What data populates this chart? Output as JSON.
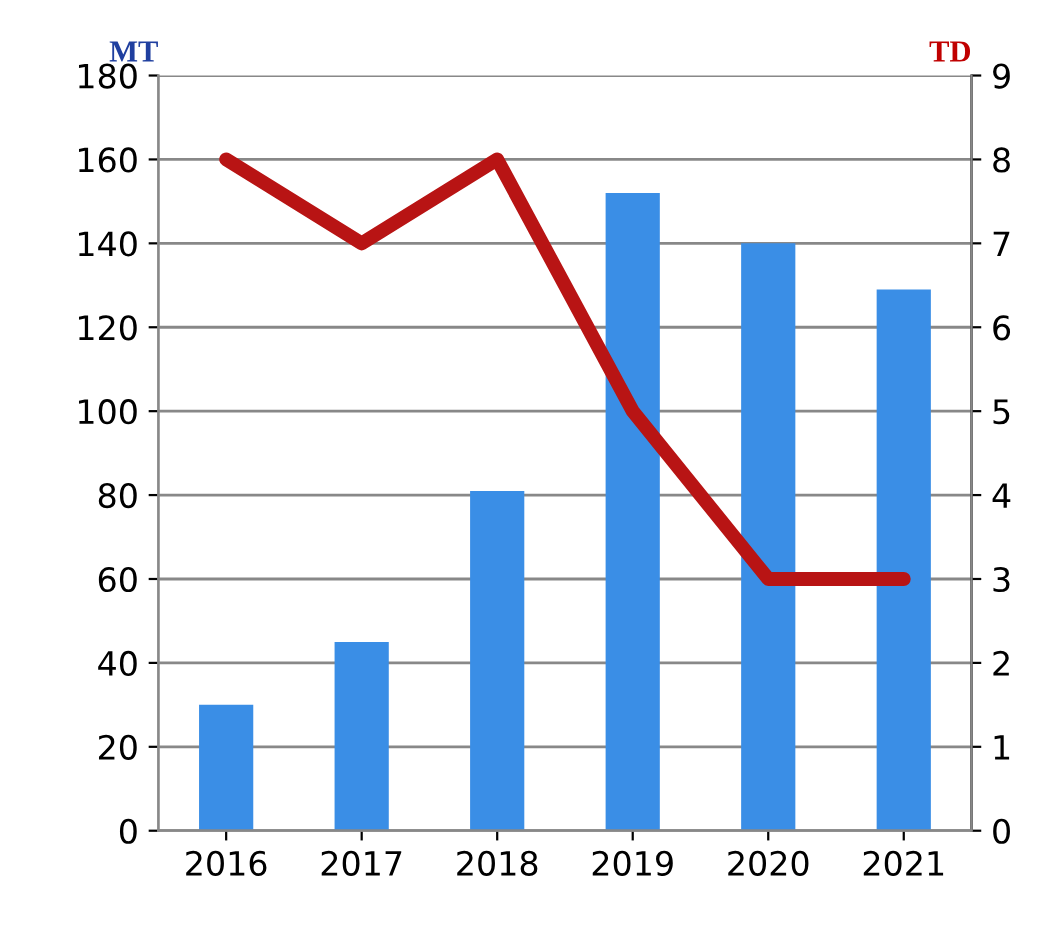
{
  "chart_data": {
    "type": "bar",
    "categories": [
      "2016",
      "2017",
      "2018",
      "2019",
      "2020",
      "2021"
    ],
    "ylabel": "MT",
    "y2label": "TD",
    "series": [
      {
        "color": "#3a8ee6",
        "values": [
          30,
          45,
          81,
          152,
          140,
          129
        ]
      },
      {
        "type": "line",
        "axis": "y2",
        "color": "#b81414",
        "values": [
          8,
          7,
          8,
          5,
          3,
          3
        ]
      }
    ],
    "ylim": [
      0,
      180
    ],
    "yticks": [
      0,
      20,
      40,
      60,
      80,
      100,
      120,
      140,
      160,
      180
    ],
    "y2lim": [
      0,
      9
    ],
    "y2ticks": [
      0,
      1,
      2,
      3,
      4,
      5,
      6,
      7,
      8,
      9
    ],
    "grid": "y",
    "line_style": "solid",
    "marker": "none"
  }
}
